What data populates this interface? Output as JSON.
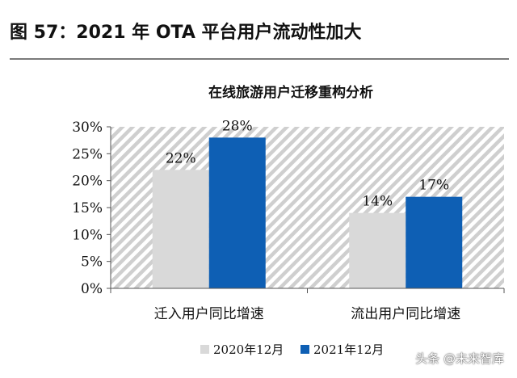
{
  "figure_title": "图 57：2021 年 OTA 平台用户流动性加大",
  "watermark": "头条 @未来智库",
  "chart_data": {
    "type": "bar",
    "title": "在线旅游用户迁移重构分析",
    "categories": [
      "迁入用户同比增速",
      "流出用户同比增速"
    ],
    "series": [
      {
        "name": "2020年12月",
        "values": [
          22,
          14
        ],
        "labels": [
          "22%",
          "14%"
        ],
        "color": "#d9d9d9"
      },
      {
        "name": "2021年12月",
        "values": [
          28,
          17
        ],
        "labels": [
          "28%",
          "17%"
        ],
        "color": "#0e5fb4"
      }
    ],
    "ylim": [
      0,
      30
    ],
    "yticks": [
      0,
      5,
      10,
      15,
      20,
      25,
      30
    ],
    "ytick_labels": [
      "0%",
      "5%",
      "10%",
      "15%",
      "20%",
      "25%",
      "30%"
    ],
    "xlabel": "",
    "ylabel": "",
    "legend_position": "bottom",
    "background": "diagonal-hatch"
  }
}
